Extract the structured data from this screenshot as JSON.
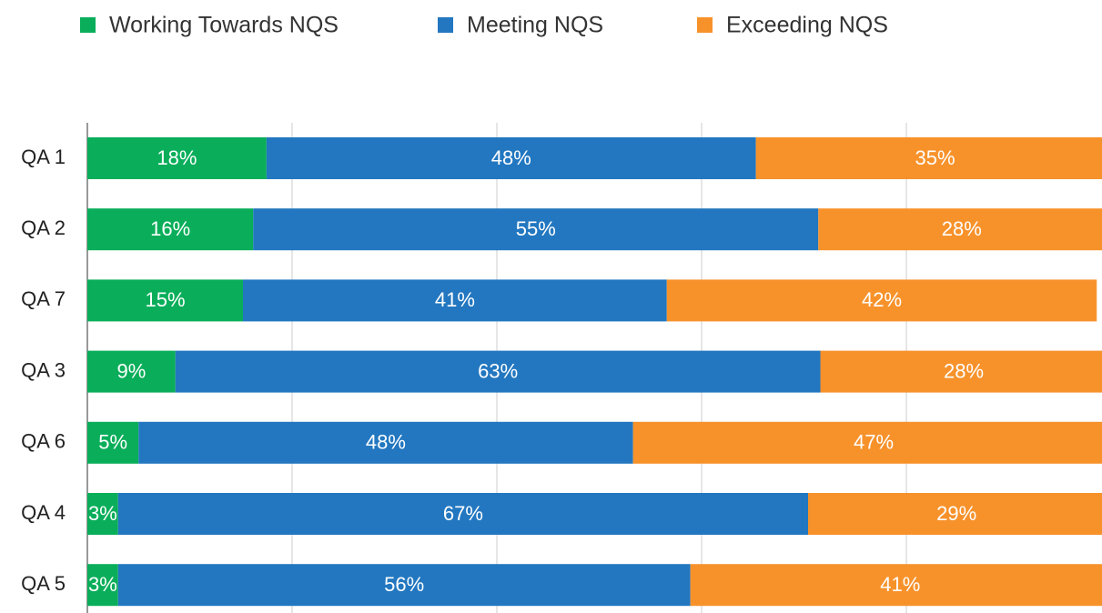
{
  "chart_data": {
    "type": "stacked_bar_horizontal",
    "categories": [
      "QA 1",
      "QA 2",
      "QA 7",
      "QA 3",
      "QA 6",
      "QA 4",
      "QA 5"
    ],
    "series": [
      {
        "name": "Working Towards NQS",
        "color": "#0aae5a",
        "values": [
          17.5,
          16.2,
          15.2,
          8.6,
          5.0,
          3.0,
          3.0
        ],
        "value_labels": [
          "18%",
          "16%",
          "15%",
          "9%",
          "5%",
          "3%",
          "3%"
        ]
      },
      {
        "name": "Meeting NQS",
        "color": "#2277c0",
        "values": [
          47.8,
          55.2,
          41.4,
          63.0,
          48.3,
          67.4,
          55.9
        ],
        "value_labels": [
          "48%",
          "55%",
          "41%",
          "63%",
          "48%",
          "67%",
          "56%"
        ]
      },
      {
        "name": "Exceeding NQS",
        "color": "#f7922b",
        "values": [
          35,
          28,
          42,
          28,
          47,
          29,
          41
        ],
        "value_labels": [
          "35%",
          "28%",
          "42%",
          "28%",
          "47%",
          "29%",
          "41%"
        ]
      }
    ],
    "xlim": [
      0,
      100
    ],
    "xticks": [
      0,
      20,
      40,
      60,
      80,
      100
    ],
    "grid": true
  }
}
